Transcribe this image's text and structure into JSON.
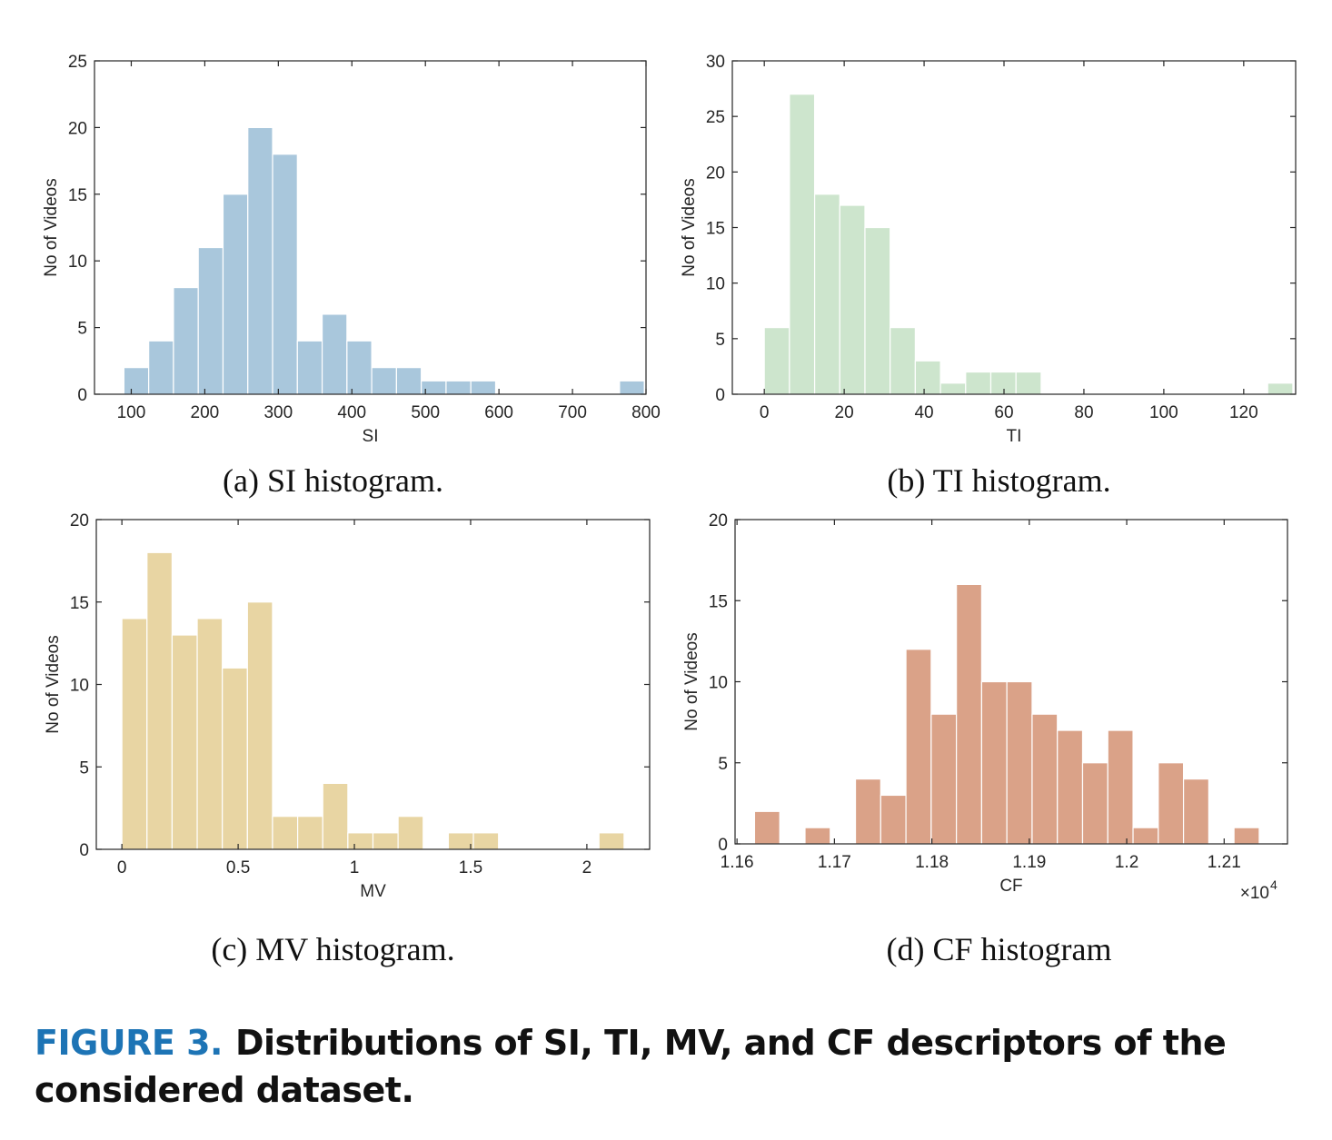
{
  "figure": {
    "label": "FIGURE 3.",
    "caption": "Distributions of SI, TI, MV, and CF descriptors of the considered dataset."
  },
  "chart_data": [
    {
      "type": "bar",
      "id": "si",
      "subcaption": "(a) SI histogram.",
      "xlabel": "SI",
      "ylabel": "No of Videos",
      "color": "#a9c7dc",
      "xlim": [
        50,
        800
      ],
      "ylim": [
        0,
        25
      ],
      "xticks": [
        100,
        200,
        300,
        400,
        500,
        600,
        700,
        800
      ],
      "xtick_labels": [
        "100",
        "200",
        "300",
        "400",
        "500",
        "600",
        "700",
        "800"
      ],
      "yticks": [
        0,
        5,
        10,
        15,
        20,
        25
      ],
      "ytick_labels": [
        "0",
        "5",
        "10",
        "15",
        "20",
        "25"
      ],
      "bin_start": 90,
      "bin_width": 33.7,
      "counts": [
        2,
        4,
        8,
        11,
        15,
        20,
        18,
        4,
        6,
        4,
        2,
        2,
        1,
        1,
        1,
        0,
        0,
        0,
        0,
        0,
        1
      ],
      "exponent_label": ""
    },
    {
      "type": "bar",
      "id": "ti",
      "subcaption": "(b) TI histogram.",
      "xlabel": "TI",
      "ylabel": "No of Videos",
      "color": "#cde5cd",
      "xlim": [
        -8,
        133
      ],
      "ylim": [
        0,
        30
      ],
      "xticks": [
        0,
        20,
        40,
        60,
        80,
        100,
        120
      ],
      "xtick_labels": [
        "0",
        "20",
        "40",
        "60",
        "80",
        "100",
        "120"
      ],
      "yticks": [
        0,
        5,
        10,
        15,
        20,
        25,
        30
      ],
      "ytick_labels": [
        "0",
        "5",
        "10",
        "15",
        "20",
        "25",
        "30"
      ],
      "bin_start": 0,
      "bin_width": 6.3,
      "counts": [
        6,
        27,
        18,
        17,
        15,
        6,
        3,
        1,
        2,
        2,
        2,
        0,
        0,
        0,
        0,
        0,
        0,
        0,
        0,
        0,
        1
      ],
      "exponent_label": ""
    },
    {
      "type": "bar",
      "id": "mv",
      "subcaption": "(c) MV histogram.",
      "xlabel": "MV",
      "ylabel": "No of Videos",
      "color": "#e8d5a3",
      "xlim": [
        -0.11,
        2.27
      ],
      "ylim": [
        0,
        20
      ],
      "xticks": [
        0,
        0.5,
        1,
        1.5,
        2
      ],
      "xtick_labels": [
        "0",
        "0.5",
        "1",
        "1.5",
        "2"
      ],
      "yticks": [
        0,
        5,
        10,
        15,
        20
      ],
      "ytick_labels": [
        "0",
        "5",
        "10",
        "15",
        "20"
      ],
      "bin_start": 0,
      "bin_width": 0.108,
      "counts": [
        14,
        18,
        13,
        14,
        11,
        15,
        2,
        2,
        4,
        1,
        1,
        2,
        0,
        1,
        1,
        0,
        0,
        0,
        0,
        1
      ],
      "exponent_label": ""
    },
    {
      "type": "bar",
      "id": "cf",
      "subcaption": "(d) CF histogram",
      "xlabel": "CF",
      "ylabel": "No of Videos",
      "color": "#daa288",
      "xlim": [
        11598,
        12165
      ],
      "ylim": [
        0,
        20
      ],
      "xticks": [
        11600,
        11700,
        11800,
        11900,
        12000,
        12100
      ],
      "xtick_labels": [
        "1.16",
        "1.17",
        "1.18",
        "1.19",
        "1.2",
        "1.21"
      ],
      "yticks": [
        0,
        5,
        10,
        15,
        20
      ],
      "ytick_labels": [
        "0",
        "5",
        "10",
        "15",
        "20"
      ],
      "bin_start": 11618,
      "bin_width": 25.9,
      "counts": [
        2,
        0,
        1,
        0,
        4,
        3,
        12,
        8,
        16,
        10,
        10,
        8,
        7,
        5,
        7,
        1,
        5,
        4,
        0,
        1
      ],
      "exponent_label": "×10"
    }
  ],
  "exponent_power": "4"
}
